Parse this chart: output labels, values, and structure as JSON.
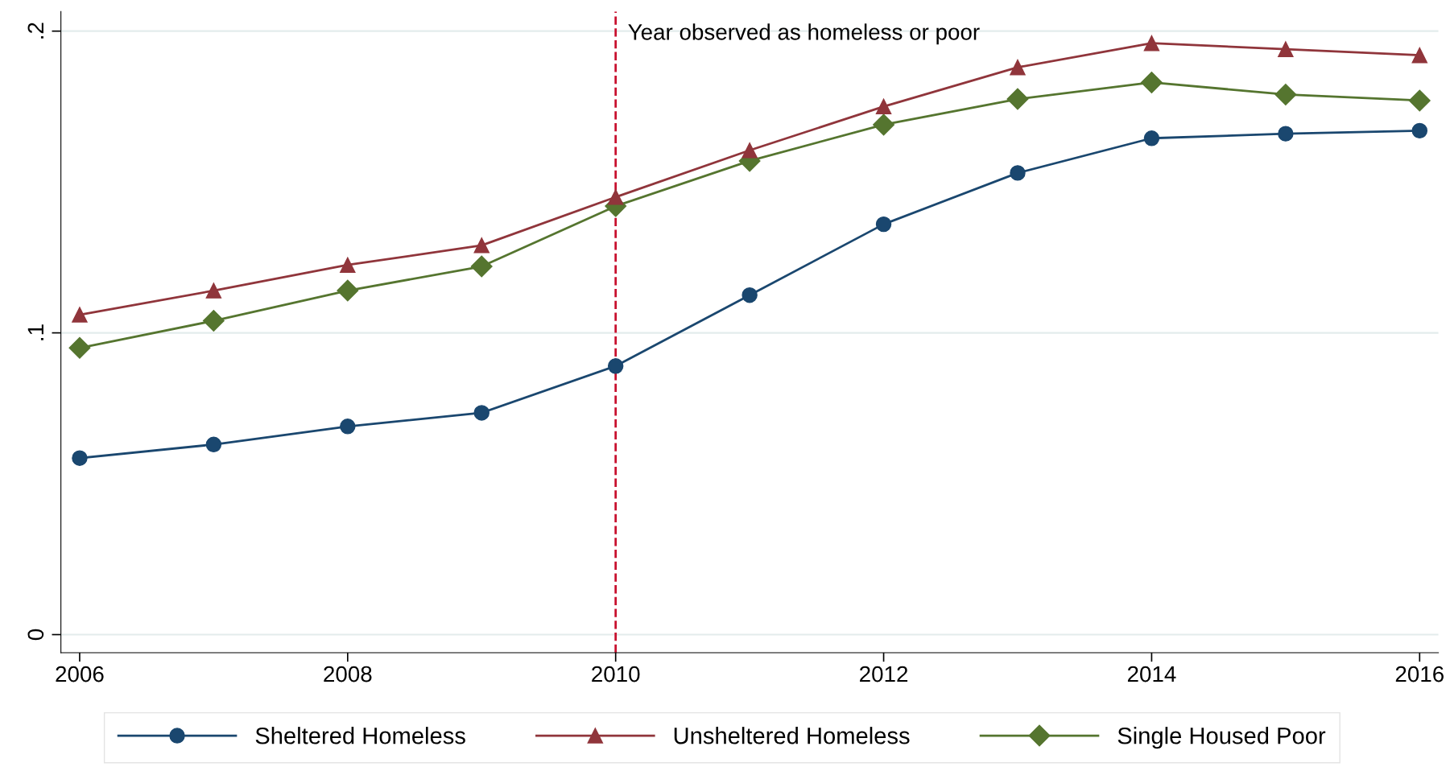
{
  "chart_data": {
    "type": "line",
    "x": [
      2006,
      2007,
      2008,
      2009,
      2010,
      2011,
      2012,
      2013,
      2014,
      2015,
      2016
    ],
    "series": [
      {
        "name": "Sheltered Homeless",
        "color": "#1a476f",
        "marker": "circle",
        "values": [
          0.0585,
          0.063,
          0.069,
          0.0735,
          0.089,
          0.1125,
          0.136,
          0.153,
          0.1645,
          0.166,
          0.167
        ]
      },
      {
        "name": "Unsheltered Homeless",
        "color": "#90353b",
        "marker": "triangle",
        "values": [
          0.106,
          0.114,
          0.1225,
          0.129,
          0.145,
          0.1605,
          0.175,
          0.188,
          0.196,
          0.194,
          0.192
        ]
      },
      {
        "name": "Single Housed Poor",
        "color": "#55752f",
        "marker": "diamond",
        "values": [
          0.095,
          0.104,
          0.114,
          0.122,
          0.142,
          0.157,
          0.169,
          0.1775,
          0.183,
          0.179,
          0.177
        ]
      }
    ],
    "xlim": [
      2005.86,
      2016.14
    ],
    "xticks": [
      2006,
      2008,
      2010,
      2012,
      2014,
      2016
    ],
    "ylim": [
      -0.006,
      0.2065
    ],
    "yticks": [
      {
        "value": 0,
        "label": "0"
      },
      {
        "value": 0.1,
        "label": ".1"
      },
      {
        "value": 0.2,
        "label": ".2"
      }
    ],
    "grid": "y",
    "legend": "bottom",
    "line_style": "solid",
    "ref_lines": [
      {
        "axis": "x",
        "value": 2010,
        "label": "Year observed as homeless or poor",
        "color": "#c8102e",
        "line_style": "dashed"
      }
    ]
  }
}
